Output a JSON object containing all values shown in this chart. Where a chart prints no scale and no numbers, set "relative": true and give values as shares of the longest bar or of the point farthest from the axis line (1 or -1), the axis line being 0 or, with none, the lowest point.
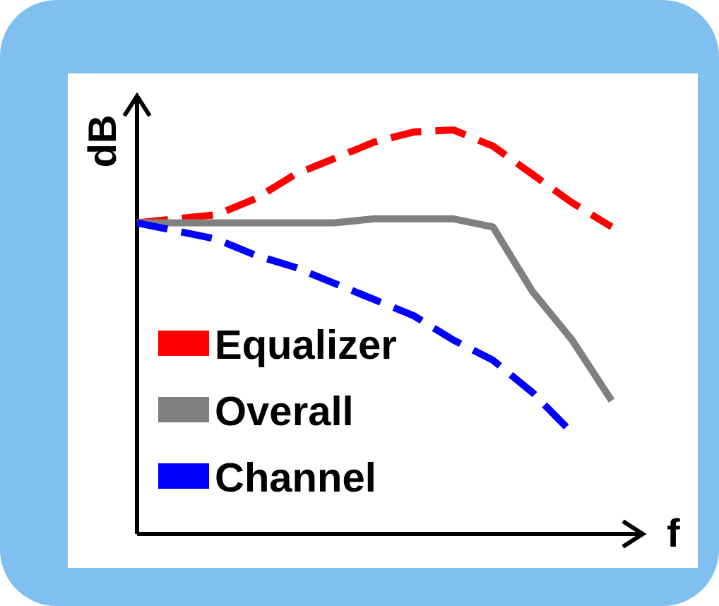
{
  "chart_data": {
    "type": "line",
    "relative": true,
    "xlabel": "f",
    "ylabel": "dB",
    "legend": "bottom left",
    "categories": [
      null,
      null,
      null,
      null,
      null,
      null,
      null,
      null,
      null,
      null,
      null,
      null,
      null
    ],
    "series": [
      {
        "name": "Equalizer",
        "color": "#ff0000",
        "line_style": "dashed",
        "values": [
          0.77,
          0.78,
          0.79,
          0.83,
          0.89,
          0.93,
          0.97,
          0.995,
          1,
          0.96,
          0.89,
          0.82,
          0.76
        ]
      },
      {
        "name": "Overall",
        "color": "#808080",
        "line_style": "solid",
        "values": [
          0.77,
          0.77,
          0.77,
          0.77,
          0.77,
          0.77,
          0.78,
          0.78,
          0.78,
          0.76,
          0.6,
          0.48,
          0.33
        ]
      },
      {
        "name": "Channel",
        "color": "#0000ff",
        "line_style": "dashed",
        "values": [
          0.77,
          0.75,
          0.73,
          0.69,
          0.66,
          0.62,
          0.58,
          0.54,
          0.48,
          0.43,
          0.35,
          0.25,
          null
        ]
      }
    ]
  }
}
